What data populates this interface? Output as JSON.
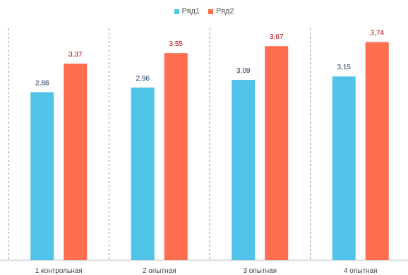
{
  "chart_data": {
    "type": "bar",
    "categories": [
      "1 контрольная",
      "2 опытная",
      "3 опытная",
      "4 опытная"
    ],
    "series": [
      {
        "name": "Ряд1",
        "values": [
          2.88,
          2.96,
          3.09,
          3.15
        ],
        "labels": [
          "2,88",
          "2,96",
          "3,09",
          "3,15"
        ],
        "color": "#4fc3e8",
        "label_color": "#1f3864"
      },
      {
        "name": "Ряд2",
        "values": [
          3.37,
          3.55,
          3.67,
          3.74
        ],
        "labels": [
          "3,37",
          "3,55",
          "3,67",
          "3,74"
        ],
        "color": "#ff6e4f",
        "label_color": "#c00000"
      }
    ],
    "ylim": [
      0,
      4.0
    ],
    "grid": false,
    "legend_position": "top-center",
    "category_separators": "dashed"
  }
}
